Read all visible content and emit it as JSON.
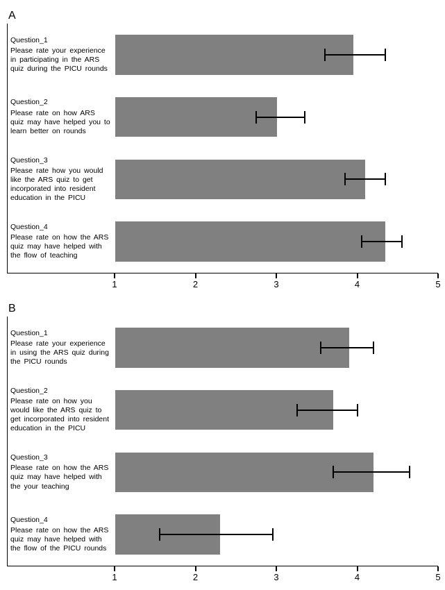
{
  "panels": [
    {
      "label": "A",
      "type": "bar",
      "xlim": [
        1,
        5
      ],
      "xtick_step": 1,
      "bar_color": "#808080",
      "background_color": "#ffffff",
      "axis_color": "#000000",
      "label_fontsize": 10.5,
      "tick_fontsize": 13,
      "questions": [
        {
          "head": "Question_1",
          "text": "Please rate your experience in participating in the ARS quiz during the PICU rounds",
          "value": 3.95,
          "err_low": 3.6,
          "err_high": 4.35
        },
        {
          "head": "Question_2",
          "text": "Please rate on how ARS quiz may have helped you to learn better on rounds",
          "value": 3.0,
          "err_low": 2.75,
          "err_high": 3.35
        },
        {
          "head": "Question_3",
          "text": "Please rate how you would like the ARS quiz to get incorporated into resident education in the PICU",
          "value": 4.1,
          "err_low": 3.85,
          "err_high": 4.35
        },
        {
          "head": "Question_4",
          "text": "Please rate on how the ARS quiz may have helped with the flow of teaching",
          "value": 4.35,
          "err_low": 4.05,
          "err_high": 4.55
        }
      ]
    },
    {
      "label": "B",
      "type": "bar",
      "xlim": [
        1,
        5
      ],
      "xtick_step": 1,
      "bar_color": "#808080",
      "background_color": "#ffffff",
      "axis_color": "#000000",
      "label_fontsize": 10.5,
      "tick_fontsize": 13,
      "questions": [
        {
          "head": "Question_1",
          "text": "Please rate your experience in using the ARS quiz during the PICU rounds",
          "value": 3.9,
          "err_low": 3.55,
          "err_high": 4.2
        },
        {
          "head": "Question_2",
          "text": "Please rate on how you would like the ARS quiz to get incorporated into resident education in the PICU",
          "value": 3.7,
          "err_low": 3.25,
          "err_high": 4.0
        },
        {
          "head": "Question_3",
          "text": "Please rate on how the ARS quiz may have helped with the your teaching",
          "value": 4.2,
          "err_low": 3.7,
          "err_high": 4.65
        },
        {
          "head": "Question_4",
          "text": "Please rate on how the ARS quiz may have helped with the flow of the PICU rounds",
          "value": 2.3,
          "err_low": 1.55,
          "err_high": 2.95
        }
      ]
    }
  ]
}
